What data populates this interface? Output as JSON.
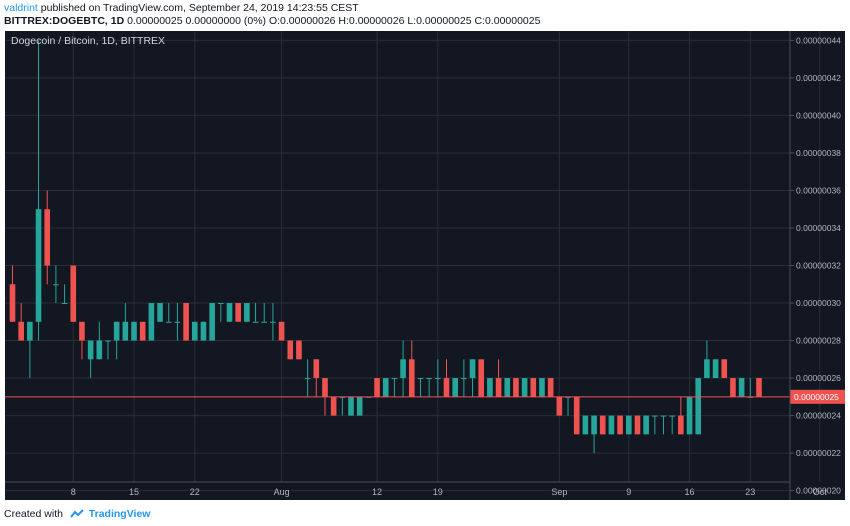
{
  "header": {
    "author": "valdrint",
    "published_text": "published on TradingView.com, September 24, 2019 14:23:55 CEST",
    "symbol": "BITTREX:DOGEBTC, 1D",
    "ohlc_text": "0.00000025 0.00000000 (0%) O:0.00000026 H:0.00000026 L:0.00000025 C:0.00000025"
  },
  "footer": {
    "created_with": "Created with",
    "brand": "TradingView",
    "logo_icon": "tradingview-logo-icon"
  },
  "colors": {
    "background": "#131722",
    "grid": "#2a2e39",
    "up": "#26a69a",
    "down": "#ef5350",
    "axis_text": "#b2b5be",
    "price_line": "#ef5350",
    "price_label_bg": "#ef5350"
  },
  "chart_data": {
    "type": "candlestick",
    "title": "Dogecoin / Bitcoin, 1D, BITTREX",
    "ylim": [
      1.95e-07,
      4.45e-07
    ],
    "y_ticks": [
      "0.00000044",
      "0.00000042",
      "0.00000040",
      "0.00000038",
      "0.00000036",
      "0.00000034",
      "0.00000032",
      "0.00000030",
      "0.00000028",
      "0.00000026",
      "0.00000024",
      "0.00000022",
      "0.00000020"
    ],
    "x_ticks": [
      {
        "label": "8",
        "index": 7
      },
      {
        "label": "15",
        "index": 14
      },
      {
        "label": "22",
        "index": 21
      },
      {
        "label": "Aug",
        "index": 31
      },
      {
        "label": "12",
        "index": 42
      },
      {
        "label": "19",
        "index": 49
      },
      {
        "label": "Sep",
        "index": 63
      },
      {
        "label": "9",
        "index": 71
      },
      {
        "label": "16",
        "index": 78
      },
      {
        "label": "23",
        "index": 85
      },
      {
        "label": "Oct",
        "index": 93
      }
    ],
    "current_price": 2.5e-07,
    "current_price_label": "0.00000025",
    "candles": [
      {
        "o": 3.1e-07,
        "h": 3.2e-07,
        "l": 2.9e-07,
        "c": 2.9e-07
      },
      {
        "o": 2.9e-07,
        "h": 3e-07,
        "l": 2.8e-07,
        "c": 2.8e-07
      },
      {
        "o": 2.8e-07,
        "h": 2.9e-07,
        "l": 2.6e-07,
        "c": 2.9e-07
      },
      {
        "o": 2.9e-07,
        "h": 4.4e-07,
        "l": 2.8e-07,
        "c": 3.5e-07
      },
      {
        "o": 3.5e-07,
        "h": 3.6e-07,
        "l": 3.1e-07,
        "c": 3.2e-07
      },
      {
        "o": 3.1e-07,
        "h": 3.2e-07,
        "l": 3e-07,
        "c": 3.1e-07
      },
      {
        "o": 3e-07,
        "h": 3.1e-07,
        "l": 3e-07,
        "c": 3e-07
      },
      {
        "o": 3.2e-07,
        "h": 3.2e-07,
        "l": 2.9e-07,
        "c": 2.9e-07
      },
      {
        "o": 2.9e-07,
        "h": 2.9e-07,
        "l": 2.7e-07,
        "c": 2.8e-07
      },
      {
        "o": 2.7e-07,
        "h": 2.8e-07,
        "l": 2.6e-07,
        "c": 2.8e-07
      },
      {
        "o": 2.7e-07,
        "h": 2.9e-07,
        "l": 2.7e-07,
        "c": 2.8e-07
      },
      {
        "o": 2.8e-07,
        "h": 2.8e-07,
        "l": 2.7e-07,
        "c": 2.8e-07
      },
      {
        "o": 2.8e-07,
        "h": 2.9e-07,
        "l": 2.7e-07,
        "c": 2.9e-07
      },
      {
        "o": 2.8e-07,
        "h": 3e-07,
        "l": 2.8e-07,
        "c": 2.9e-07
      },
      {
        "o": 2.8e-07,
        "h": 2.9e-07,
        "l": 2.8e-07,
        "c": 2.9e-07
      },
      {
        "o": 2.9e-07,
        "h": 2.9e-07,
        "l": 2.8e-07,
        "c": 2.8e-07
      },
      {
        "o": 2.8e-07,
        "h": 3e-07,
        "l": 2.8e-07,
        "c": 3e-07
      },
      {
        "o": 2.9e-07,
        "h": 3e-07,
        "l": 2.9e-07,
        "c": 3e-07
      },
      {
        "o": 2.9e-07,
        "h": 3e-07,
        "l": 2.9e-07,
        "c": 2.9e-07
      },
      {
        "o": 2.9e-07,
        "h": 3e-07,
        "l": 2.8e-07,
        "c": 2.9e-07
      },
      {
        "o": 3e-07,
        "h": 3e-07,
        "l": 2.8e-07,
        "c": 2.8e-07
      },
      {
        "o": 2.8e-07,
        "h": 2.9e-07,
        "l": 2.8e-07,
        "c": 2.9e-07
      },
      {
        "o": 2.8e-07,
        "h": 2.9e-07,
        "l": 2.8e-07,
        "c": 2.9e-07
      },
      {
        "o": 2.8e-07,
        "h": 3e-07,
        "l": 2.8e-07,
        "c": 3e-07
      },
      {
        "o": 3e-07,
        "h": 3e-07,
        "l": 2.9e-07,
        "c": 3e-07
      },
      {
        "o": 2.9e-07,
        "h": 3e-07,
        "l": 2.9e-07,
        "c": 3e-07
      },
      {
        "o": 3e-07,
        "h": 3e-07,
        "l": 2.9e-07,
        "c": 2.9e-07
      },
      {
        "o": 2.9e-07,
        "h": 3e-07,
        "l": 2.9e-07,
        "c": 3e-07
      },
      {
        "o": 2.9e-07,
        "h": 3e-07,
        "l": 2.9e-07,
        "c": 2.9e-07
      },
      {
        "o": 2.9e-07,
        "h": 3e-07,
        "l": 2.9e-07,
        "c": 2.9e-07
      },
      {
        "o": 2.9e-07,
        "h": 3e-07,
        "l": 2.8e-07,
        "c": 2.9e-07
      },
      {
        "o": 2.9e-07,
        "h": 2.9e-07,
        "l": 2.8e-07,
        "c": 2.8e-07
      },
      {
        "o": 2.8e-07,
        "h": 2.8e-07,
        "l": 2.7e-07,
        "c": 2.7e-07
      },
      {
        "o": 2.8e-07,
        "h": 2.8e-07,
        "l": 2.7e-07,
        "c": 2.7e-07
      },
      {
        "o": 2.6e-07,
        "h": 2.7e-07,
        "l": 2.5e-07,
        "c": 2.6e-07
      },
      {
        "o": 2.7e-07,
        "h": 2.7e-07,
        "l": 2.5e-07,
        "c": 2.6e-07
      },
      {
        "o": 2.6e-07,
        "h": 2.6e-07,
        "l": 2.4e-07,
        "c": 2.5e-07
      },
      {
        "o": 2.5e-07,
        "h": 2.5e-07,
        "l": 2.4e-07,
        "c": 2.4e-07
      },
      {
        "o": 2.5e-07,
        "h": 2.5e-07,
        "l": 2.4e-07,
        "c": 2.5e-07
      },
      {
        "o": 2.4e-07,
        "h": 2.5e-07,
        "l": 2.4e-07,
        "c": 2.5e-07
      },
      {
        "o": 2.4e-07,
        "h": 2.5e-07,
        "l": 2.4e-07,
        "c": 2.5e-07
      },
      {
        "o": 2.5e-07,
        "h": 2.5e-07,
        "l": 2.5e-07,
        "c": 2.5e-07
      },
      {
        "o": 2.6e-07,
        "h": 2.6e-07,
        "l": 2.5e-07,
        "c": 2.5e-07
      },
      {
        "o": 2.5e-07,
        "h": 2.6e-07,
        "l": 2.5e-07,
        "c": 2.6e-07
      },
      {
        "o": 2.6e-07,
        "h": 2.6e-07,
        "l": 2.5e-07,
        "c": 2.6e-07
      },
      {
        "o": 2.6e-07,
        "h": 2.8e-07,
        "l": 2.5e-07,
        "c": 2.7e-07
      },
      {
        "o": 2.7e-07,
        "h": 2.8e-07,
        "l": 2.5e-07,
        "c": 2.5e-07
      },
      {
        "o": 2.6e-07,
        "h": 2.6e-07,
        "l": 2.5e-07,
        "c": 2.6e-07
      },
      {
        "o": 2.6e-07,
        "h": 2.6e-07,
        "l": 2.5e-07,
        "c": 2.6e-07
      },
      {
        "o": 2.6e-07,
        "h": 2.7e-07,
        "l": 2.5e-07,
        "c": 2.6e-07
      },
      {
        "o": 2.6e-07,
        "h": 2.7e-07,
        "l": 2.5e-07,
        "c": 2.5e-07
      },
      {
        "o": 2.5e-07,
        "h": 2.6e-07,
        "l": 2.5e-07,
        "c": 2.6e-07
      },
      {
        "o": 2.6e-07,
        "h": 2.7e-07,
        "l": 2.5e-07,
        "c": 2.6e-07
      },
      {
        "o": 2.6e-07,
        "h": 2.7e-07,
        "l": 2.5e-07,
        "c": 2.7e-07
      },
      {
        "o": 2.7e-07,
        "h": 2.7e-07,
        "l": 2.5e-07,
        "c": 2.5e-07
      },
      {
        "o": 2.5e-07,
        "h": 2.6e-07,
        "l": 2.5e-07,
        "c": 2.6e-07
      },
      {
        "o": 2.6e-07,
        "h": 2.7e-07,
        "l": 2.5e-07,
        "c": 2.5e-07
      },
      {
        "o": 2.5e-07,
        "h": 2.6e-07,
        "l": 2.5e-07,
        "c": 2.6e-07
      },
      {
        "o": 2.6e-07,
        "h": 2.6e-07,
        "l": 2.5e-07,
        "c": 2.5e-07
      },
      {
        "o": 2.5e-07,
        "h": 2.6e-07,
        "l": 2.5e-07,
        "c": 2.6e-07
      },
      {
        "o": 2.6e-07,
        "h": 2.6e-07,
        "l": 2.5e-07,
        "c": 2.5e-07
      },
      {
        "o": 2.5e-07,
        "h": 2.6e-07,
        "l": 2.5e-07,
        "c": 2.6e-07
      },
      {
        "o": 2.6e-07,
        "h": 2.6e-07,
        "l": 2.5e-07,
        "c": 2.5e-07
      },
      {
        "o": 2.5e-07,
        "h": 2.5e-07,
        "l": 2.4e-07,
        "c": 2.4e-07
      },
      {
        "o": 2.5e-07,
        "h": 2.5e-07,
        "l": 2.4e-07,
        "c": 2.5e-07
      },
      {
        "o": 2.5e-07,
        "h": 2.5e-07,
        "l": 2.3e-07,
        "c": 2.3e-07
      },
      {
        "o": 2.3e-07,
        "h": 2.4e-07,
        "l": 2.3e-07,
        "c": 2.4e-07
      },
      {
        "o": 2.3e-07,
        "h": 2.4e-07,
        "l": 2.2e-07,
        "c": 2.4e-07
      },
      {
        "o": 2.4e-07,
        "h": 2.4e-07,
        "l": 2.3e-07,
        "c": 2.3e-07
      },
      {
        "o": 2.3e-07,
        "h": 2.4e-07,
        "l": 2.3e-07,
        "c": 2.4e-07
      },
      {
        "o": 2.4e-07,
        "h": 2.4e-07,
        "l": 2.3e-07,
        "c": 2.3e-07
      },
      {
        "o": 2.3e-07,
        "h": 2.4e-07,
        "l": 2.3e-07,
        "c": 2.4e-07
      },
      {
        "o": 2.4e-07,
        "h": 2.4e-07,
        "l": 2.3e-07,
        "c": 2.3e-07
      },
      {
        "o": 2.3e-07,
        "h": 2.4e-07,
        "l": 2.3e-07,
        "c": 2.4e-07
      },
      {
        "o": 2.4e-07,
        "h": 2.4e-07,
        "l": 2.3e-07,
        "c": 2.4e-07
      },
      {
        "o": 2.4e-07,
        "h": 2.4e-07,
        "l": 2.3e-07,
        "c": 2.4e-07
      },
      {
        "o": 2.4e-07,
        "h": 2.4e-07,
        "l": 2.3e-07,
        "c": 2.4e-07
      },
      {
        "o": 2.4e-07,
        "h": 2.5e-07,
        "l": 2.3e-07,
        "c": 2.3e-07
      },
      {
        "o": 2.3e-07,
        "h": 2.5e-07,
        "l": 2.3e-07,
        "c": 2.5e-07
      },
      {
        "o": 2.3e-07,
        "h": 2.6e-07,
        "l": 2.3e-07,
        "c": 2.6e-07
      },
      {
        "o": 2.6e-07,
        "h": 2.8e-07,
        "l": 2.6e-07,
        "c": 2.7e-07
      },
      {
        "o": 2.6e-07,
        "h": 2.7e-07,
        "l": 2.6e-07,
        "c": 2.7e-07
      },
      {
        "o": 2.7e-07,
        "h": 2.7e-07,
        "l": 2.6e-07,
        "c": 2.6e-07
      },
      {
        "o": 2.6e-07,
        "h": 2.6e-07,
        "l": 2.5e-07,
        "c": 2.5e-07
      },
      {
        "o": 2.5e-07,
        "h": 2.6e-07,
        "l": 2.5e-07,
        "c": 2.6e-07
      },
      {
        "o": 2.5e-07,
        "h": 2.6e-07,
        "l": 2.5e-07,
        "c": 2.5e-07
      },
      {
        "o": 2.6e-07,
        "h": 2.6e-07,
        "l": 2.5e-07,
        "c": 2.5e-07
      }
    ]
  }
}
